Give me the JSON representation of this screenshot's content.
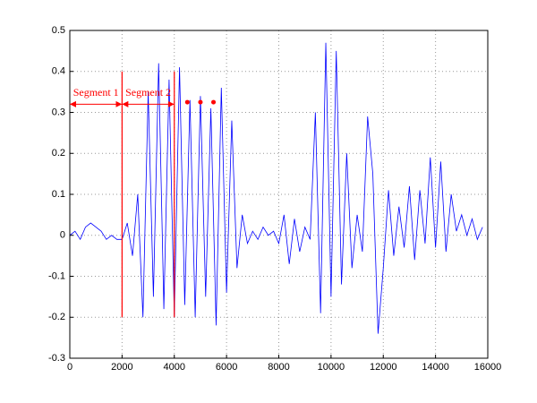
{
  "chart_data": {
    "type": "line",
    "x": [
      0,
      200,
      400,
      600,
      800,
      1000,
      1200,
      1400,
      1600,
      1800,
      2000,
      2200,
      2400,
      2600,
      2800,
      3000,
      3200,
      3400,
      3600,
      3800,
      4000,
      4200,
      4400,
      4600,
      4800,
      5000,
      5200,
      5400,
      5600,
      5800,
      6000,
      6200,
      6400,
      6600,
      6800,
      7000,
      7200,
      7400,
      7600,
      7800,
      8000,
      8200,
      8400,
      8600,
      8800,
      9000,
      9200,
      9400,
      9600,
      9800,
      10000,
      10200,
      10400,
      10600,
      10800,
      11000,
      11200,
      11400,
      11600,
      11800,
      12000,
      12200,
      12400,
      12600,
      12800,
      13000,
      13200,
      13400,
      13600,
      13800,
      14000,
      14200,
      14400,
      14600,
      14800,
      15000,
      15200,
      15400,
      15600,
      15800
    ],
    "series": [
      {
        "color": "#0000ff",
        "values": [
          0,
          0.01,
          -0.01,
          0.02,
          0.03,
          0.02,
          0.01,
          -0.01,
          0,
          -0.01,
          -0.01,
          0.03,
          -0.05,
          0.1,
          -0.2,
          0.35,
          -0.15,
          0.42,
          -0.18,
          0.38,
          -0.2,
          0.41,
          -0.17,
          0.33,
          -0.2,
          0.34,
          -0.15,
          0.31,
          -0.22,
          0.36,
          -0.14,
          0.28,
          -0.08,
          0.05,
          -0.02,
          0.01,
          -0.01,
          0.02,
          0,
          0.01,
          -0.02,
          0.05,
          -0.07,
          0.04,
          -0.04,
          0.02,
          -0.01,
          0.3,
          -0.19,
          0.47,
          -0.15,
          0.45,
          -0.12,
          0.2,
          -0.08,
          0.05,
          -0.04,
          0.29,
          0.15,
          -0.24,
          -0.08,
          0.11,
          -0.05,
          0.07,
          -0.03,
          0.12,
          -0.06,
          0.11,
          -0.02,
          0.19,
          -0.03,
          0.18,
          -0.04,
          0.1,
          0.01,
          0.05,
          0,
          0.04,
          -0.01,
          0.02
        ]
      }
    ],
    "xlim": [
      0,
      16000
    ],
    "xticks": [
      0,
      2000,
      4000,
      6000,
      8000,
      10000,
      12000,
      14000,
      16000
    ],
    "ylim": [
      -0.3,
      0.5
    ],
    "yticks": [
      -0.3,
      -0.2,
      -0.1,
      0,
      0.1,
      0.2,
      0.3,
      0.4,
      0.5
    ],
    "grid": true,
    "annotation_color": "#ff0000",
    "boundaries": {
      "x": [
        2000,
        4000
      ],
      "y_from": -0.2,
      "y_to": 0.4
    },
    "segments": [
      {
        "label": "Segment 1",
        "start": 0,
        "end": 2000
      },
      {
        "label": "Segment 2",
        "start": 2000,
        "end": 4000
      }
    ],
    "arrow_y": 0.32,
    "continuation_dots": {
      "x": [
        4500,
        5000,
        5500
      ],
      "y": 0.325
    }
  }
}
